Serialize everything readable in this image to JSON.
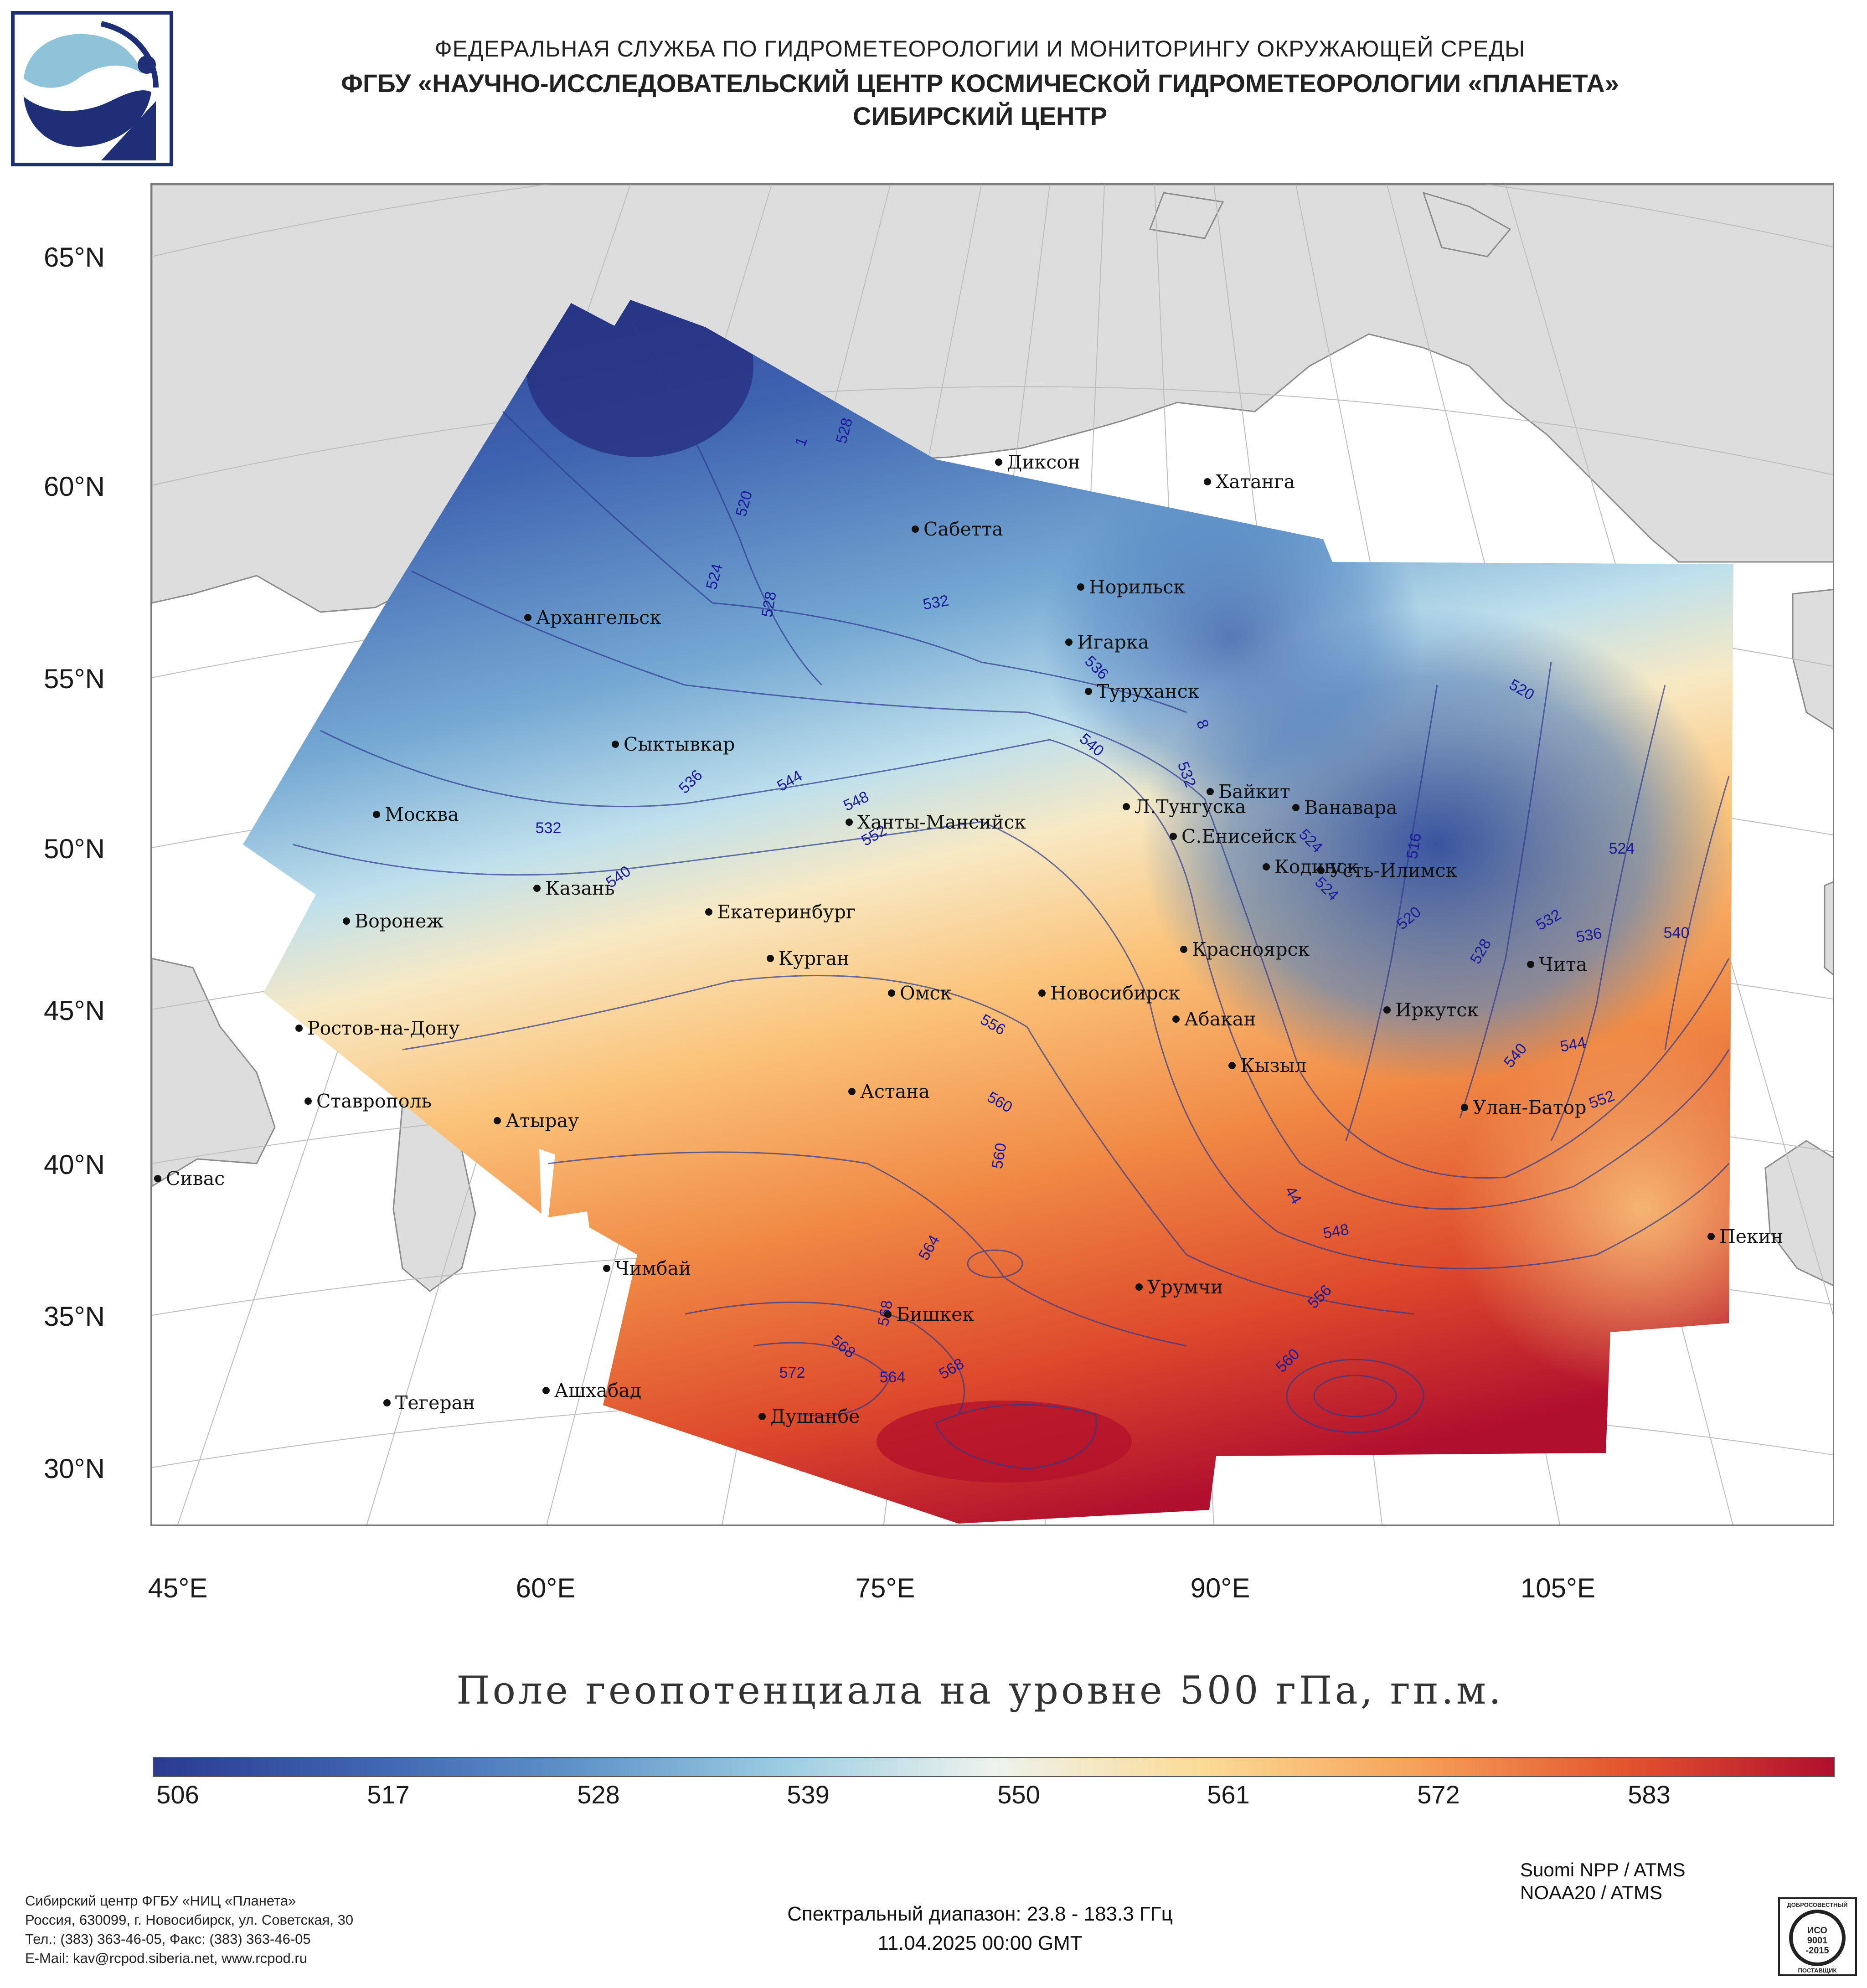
{
  "header": {
    "line1": "ФЕДЕРАЛЬНАЯ СЛУЖБА ПО ГИДРОМЕТЕОРОЛОГИИ И МОНИТОРИНГУ ОКРУЖАЮЩЕЙ СРЕДЫ",
    "line2": "ФГБУ «НАУЧНО-ИССЛЕДОВАТЕЛЬСКИЙ ЦЕНТР КОСМИЧЕСКОЙ ГИДРОМЕТЕОРОЛОГИИ «ПЛАНЕТА»",
    "line3": "СИБИРСКИЙ ЦЕНТР"
  },
  "logo": {
    "icon": "planeta-logo-icon",
    "colors": [
      "#1e2f78",
      "#8fc3d9"
    ]
  },
  "map": {
    "latitude_labels": [
      "65°N",
      "60°N",
      "55°N",
      "50°N",
      "45°N",
      "40°N",
      "35°N",
      "30°N"
    ],
    "longitude_labels": [
      "45°E",
      "60°E",
      "75°E",
      "90°E",
      "105°E"
    ],
    "cities": [
      {
        "name": "Диксон"
      },
      {
        "name": "Хатанга"
      },
      {
        "name": "Сабетта"
      },
      {
        "name": "Норильск"
      },
      {
        "name": "Архангельск"
      },
      {
        "name": "Игарка"
      },
      {
        "name": "Туруханск"
      },
      {
        "name": "Сыктывкар"
      },
      {
        "name": "Байкит"
      },
      {
        "name": "Москва"
      },
      {
        "name": "Л.Тунгуска"
      },
      {
        "name": "Ванавара"
      },
      {
        "name": "Ханты-Мансийск"
      },
      {
        "name": "С.Енисейск"
      },
      {
        "name": "Кодинск"
      },
      {
        "name": "Усть-Илимск"
      },
      {
        "name": "Казань"
      },
      {
        "name": "Воронеж"
      },
      {
        "name": "Екатеринбург"
      },
      {
        "name": "Красноярск"
      },
      {
        "name": "Курган"
      },
      {
        "name": "Чита"
      },
      {
        "name": "Омск"
      },
      {
        "name": "Новосибирск"
      },
      {
        "name": "Ростов-на-Дону"
      },
      {
        "name": "Иркутск"
      },
      {
        "name": "Абакан"
      },
      {
        "name": "Кызыл"
      },
      {
        "name": "Астана"
      },
      {
        "name": "Ставрополь"
      },
      {
        "name": "Улан-Батор"
      },
      {
        "name": "Атырау"
      },
      {
        "name": "Сивас"
      },
      {
        "name": "Пекин"
      },
      {
        "name": "Чимбай"
      },
      {
        "name": "Урумчи"
      },
      {
        "name": "Бишкек"
      },
      {
        "name": "Ашхабад"
      },
      {
        "name": "Тегеран"
      },
      {
        "name": "Душанбе"
      }
    ],
    "contour_labels": [
      "528",
      "1",
      "520",
      "524",
      "528",
      "532",
      "536",
      "540",
      "8",
      "532",
      "520",
      "536",
      "544",
      "548",
      "532",
      "552",
      "540",
      "524",
      "516",
      "524",
      "524",
      "520",
      "532",
      "528",
      "536",
      "540",
      "556",
      "560",
      "560",
      "540",
      "544",
      "552",
      "44",
      "548",
      "564",
      "568",
      "556",
      "568",
      "572",
      "564",
      "568",
      "560"
    ]
  },
  "map_title": "Поле геопотенциала на уровне 500 гПа, гп.м.",
  "colorbar": {
    "ticks": [
      "506",
      "517",
      "528",
      "539",
      "550",
      "561",
      "572",
      "583"
    ],
    "colors": [
      "#2b3a91",
      "#3e63b0",
      "#5f92c8",
      "#9ccde2",
      "#eef3ee",
      "#fbdb96",
      "#f6a25a",
      "#e4542f",
      "#b10f2e"
    ]
  },
  "footer": {
    "org_lines": [
      "Сибирский центр ФГБУ «НИЦ «Планета»",
      "Россия, 630099, г. Новосибирск, ул. Советская, 30",
      "Тел.: (383) 363-46-05, Факс: (383) 363-46-05",
      "E-Mail: kav@rcpod.siberia.net, www.rcpod.ru"
    ],
    "spectral": "Спектральный диапазон: 23.8 - 183.3 ГГц",
    "datetime": "11.04.2025 00:00 GMT",
    "satellites": [
      "Suomi NPP / ATMS",
      "NOAA20 / ATMS"
    ],
    "iso_badge": {
      "top": "ДОБРОСОВЕСТНЫЙ",
      "mid1": "ИСО",
      "mid2": "9001",
      "mid3": "-2015",
      "bottom": "ПОСТАВЩИК"
    }
  }
}
